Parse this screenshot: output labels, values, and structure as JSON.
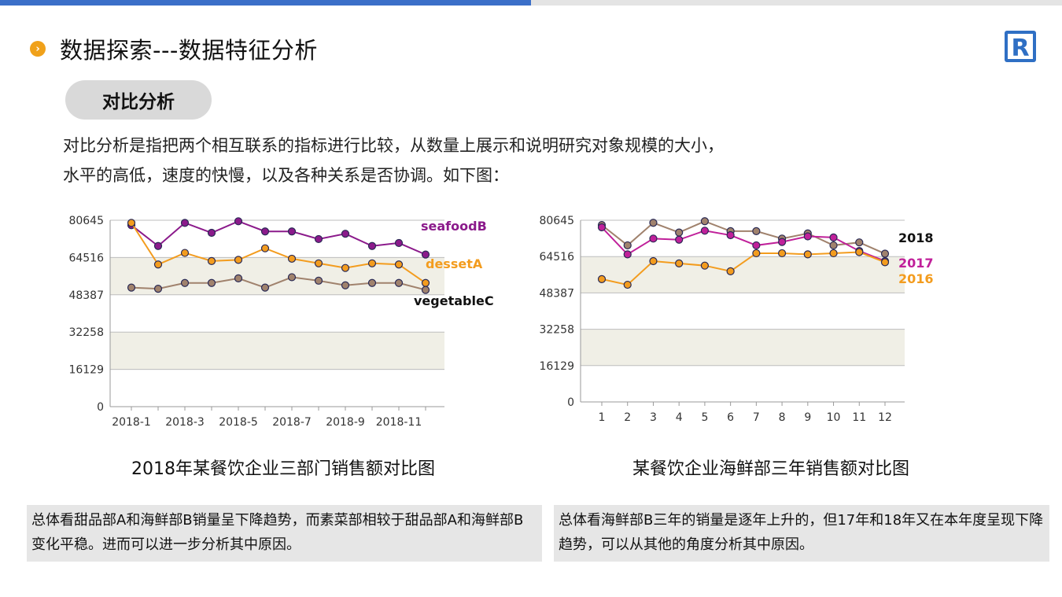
{
  "page": {
    "title": "数据探索---数据特征分析",
    "subtitle_pill": "对比分析",
    "description_line1": "对比分析是指把两个相互联系的指标进行比较，从数量上展示和说明研究对象规模的大小，",
    "description_line2": "水平的高低，速度的快慢，以及各种关系是否协调。如下图：",
    "logo_letter": "R",
    "bullet_glyph": "›"
  },
  "colors": {
    "seafood": "#8b1a8b",
    "dessert": "#f39c1e",
    "vegetable": "#a0826d",
    "y2018": "#a0826d",
    "y2017": "#c0209a",
    "y2016": "#f39c1e",
    "band": "#f0efe6"
  },
  "captions": {
    "left": "2018年某餐饮企业三部门销售额对比图",
    "right": "某餐饮企业海鲜部三年销售额对比图"
  },
  "notes": {
    "left": "总体看甜品部A和海鲜部B销量呈下降趋势，而素菜部相较于甜品部A和海鲜部B变化平稳。进而可以进一步分析其中原因。",
    "right": "总体看海鲜部B三年的销量是逐年上升的，但17年和18年又在本年度呈现下降趋势，可以从其他的角度分析其中原因。"
  },
  "chart_data": [
    {
      "type": "line",
      "title": "2018年某餐饮企业三部门销售额对比图",
      "categories": [
        "2018-1",
        "2018-2",
        "2018-3",
        "2018-4",
        "2018-5",
        "2018-6",
        "2018-7",
        "2018-8",
        "2018-9",
        "2018-10",
        "2018-11",
        "2018-12"
      ],
      "x_tick_labels": [
        "2018-1",
        "2018-3",
        "2018-5",
        "2018-7",
        "2018-9",
        "2018-11"
      ],
      "y_ticks": [
        "0",
        "16129",
        "32258",
        "48387",
        "64516",
        "80645"
      ],
      "ylim": [
        0,
        80645
      ],
      "series": [
        {
          "name": "seafoodB",
          "color_key": "seafood",
          "values": [
            78500,
            69500,
            79500,
            75200,
            80200,
            75800,
            75800,
            72500,
            74800,
            69500,
            70800,
            65800
          ]
        },
        {
          "name": "dessetA",
          "color_key": "dessert",
          "values": [
            79500,
            61500,
            66500,
            63000,
            63500,
            68500,
            64000,
            62000,
            60000,
            62000,
            61500,
            53500
          ]
        },
        {
          "name": "vegetableC",
          "color_key": "vegetable",
          "values": [
            51500,
            51000,
            53500,
            53500,
            55500,
            51500,
            56000,
            54500,
            52500,
            53500,
            53500,
            50500
          ]
        }
      ],
      "legend_placement": "right"
    },
    {
      "type": "line",
      "title": "某餐饮企业海鲜部三年销售额对比图",
      "categories": [
        "1",
        "2",
        "3",
        "4",
        "5",
        "6",
        "7",
        "8",
        "9",
        "10",
        "11",
        "12"
      ],
      "x_tick_labels": [
        "1",
        "2",
        "3",
        "4",
        "5",
        "6",
        "7",
        "8",
        "9",
        "10",
        "11",
        "12"
      ],
      "y_ticks": [
        "0",
        "16129",
        "32258",
        "48387",
        "64516",
        "80645"
      ],
      "ylim": [
        0,
        80645
      ],
      "series": [
        {
          "name": "2018",
          "color_key": "y2018",
          "values": [
            78500,
            69500,
            79500,
            75200,
            80200,
            75800,
            75800,
            72500,
            74800,
            69500,
            70800,
            65800
          ]
        },
        {
          "name": "2017",
          "color_key": "y2017",
          "values": [
            77500,
            65500,
            72500,
            72000,
            76000,
            74000,
            69500,
            71000,
            73500,
            73000,
            67000,
            62500
          ]
        },
        {
          "name": "2016",
          "color_key": "y2016",
          "values": [
            54500,
            52000,
            62500,
            61500,
            60500,
            58000,
            66000,
            66000,
            65500,
            66000,
            66500,
            62000
          ]
        }
      ],
      "legend_placement": "right"
    }
  ]
}
